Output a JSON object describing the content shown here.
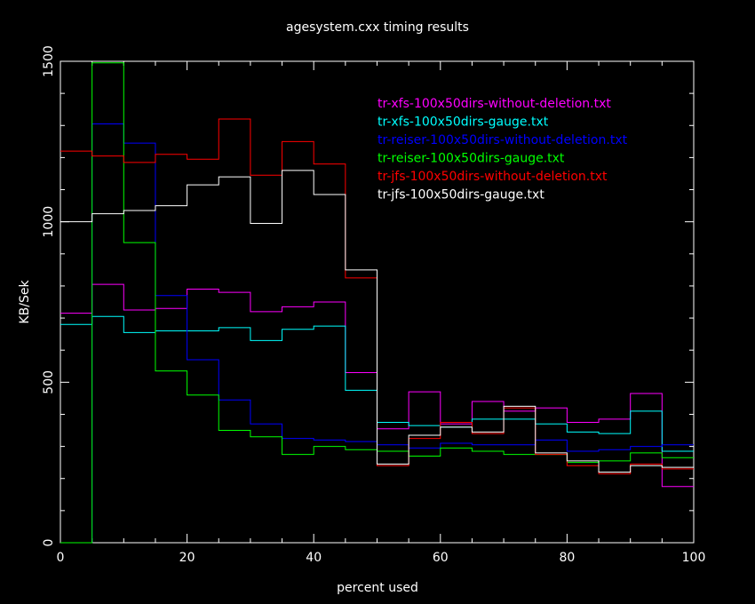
{
  "chart_data": {
    "type": "line",
    "step": true,
    "title": "agesystem.cxx timing results",
    "xlabel": "percent used",
    "ylabel": "KB/Sek",
    "xlim": [
      0,
      100
    ],
    "ylim": [
      0,
      1500
    ],
    "xticks": [
      0,
      20,
      40,
      60,
      80,
      100
    ],
    "xtick_labels": [
      "0",
      "20",
      "40",
      "60",
      "80",
      "100"
    ],
    "yticks": [
      0,
      500,
      1000,
      1500
    ],
    "ytick_labels": [
      "0",
      "500",
      "1000",
      "1500"
    ],
    "legend_position": "top-right",
    "grid": false,
    "bin_edges": [
      0,
      5,
      10,
      15,
      20,
      25,
      30,
      35,
      40,
      45,
      50,
      55,
      60,
      65,
      70,
      75,
      80,
      85,
      90,
      95,
      100
    ],
    "series": [
      {
        "name": "tr-xfs-100x50dirs-without-deletion.txt",
        "color": "#ff00ff",
        "values": [
          715,
          805,
          725,
          730,
          790,
          780,
          720,
          735,
          750,
          530,
          355,
          470,
          370,
          440,
          410,
          420,
          375,
          385,
          465,
          175
        ]
      },
      {
        "name": "tr-xfs-100x50dirs-gauge.txt",
        "color": "#00ffff",
        "values": [
          680,
          705,
          655,
          660,
          660,
          670,
          630,
          665,
          675,
          475,
          375,
          365,
          360,
          385,
          385,
          370,
          345,
          340,
          410,
          285
        ]
      },
      {
        "name": "tr-reiser-100x50dirs-without-deletion.txt",
        "color": "#0000ff",
        "values": [
          0,
          1305,
          1245,
          770,
          570,
          445,
          370,
          325,
          320,
          315,
          305,
          295,
          310,
          305,
          305,
          320,
          285,
          290,
          300,
          305
        ]
      },
      {
        "name": "tr-reiser-100x50dirs-gauge.txt",
        "color": "#00ff00",
        "values": [
          0,
          1495,
          935,
          535,
          460,
          350,
          330,
          275,
          300,
          290,
          285,
          270,
          295,
          285,
          275,
          275,
          250,
          255,
          280,
          265
        ]
      },
      {
        "name": "tr-jfs-100x50dirs-without-deletion.txt",
        "color": "#ff0000",
        "values": [
          1220,
          1205,
          1185,
          1210,
          1195,
          1320,
          1145,
          1250,
          1180,
          825,
          240,
          325,
          375,
          340,
          420,
          275,
          240,
          215,
          245,
          230
        ]
      },
      {
        "name": "tr-jfs-100x50dirs-gauge.txt",
        "color": "#ffffff",
        "values": [
          1000,
          1025,
          1035,
          1050,
          1115,
          1140,
          995,
          1160,
          1085,
          850,
          245,
          335,
          360,
          345,
          425,
          280,
          255,
          220,
          240,
          235
        ]
      }
    ]
  }
}
